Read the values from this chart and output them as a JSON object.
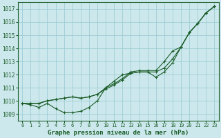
{
  "title": "Graphe pression niveau de la mer (hPa)",
  "bg_color": "#cce8ec",
  "grid_color": "#9ecdd4",
  "line_color": "#1a5c28",
  "marker_color": "#1a5c28",
  "x_values": [
    0,
    1,
    2,
    3,
    4,
    5,
    6,
    7,
    8,
    9,
    10,
    11,
    12,
    13,
    14,
    15,
    16,
    17,
    18,
    19,
    20,
    21,
    22,
    23
  ],
  "series1": [
    1009.8,
    1009.7,
    1009.5,
    1009.8,
    1009.4,
    1009.1,
    1009.1,
    1009.2,
    1009.5,
    1010.0,
    1011.0,
    1011.5,
    1012.0,
    1012.1,
    1012.2,
    1012.2,
    1011.8,
    1012.2,
    1012.9,
    1014.1,
    1015.2,
    1015.9,
    1016.7,
    1017.2
  ],
  "series2": [
    1009.8,
    1009.8,
    1009.8,
    1010.0,
    1010.1,
    1010.2,
    1010.3,
    1010.2,
    1010.3,
    1010.5,
    1010.9,
    1011.2,
    1011.6,
    1012.1,
    1012.2,
    1012.2,
    1012.2,
    1012.5,
    1013.2,
    1014.1,
    1015.2,
    1015.9,
    1016.7,
    1017.2
  ],
  "series3": [
    1009.8,
    1009.8,
    1009.8,
    1010.0,
    1010.1,
    1010.2,
    1010.3,
    1010.2,
    1010.3,
    1010.5,
    1011.0,
    1011.3,
    1011.7,
    1012.2,
    1012.3,
    1012.3,
    1012.3,
    1013.0,
    1013.8,
    1014.1,
    1015.2,
    1015.9,
    1016.7,
    1017.2
  ],
  "ylim": [
    1008.5,
    1017.5
  ],
  "xlim": [
    -0.5,
    23.5
  ],
  "yticks": [
    1009,
    1010,
    1011,
    1012,
    1013,
    1014,
    1015,
    1016,
    1017
  ],
  "xticks": [
    0,
    1,
    2,
    3,
    4,
    5,
    6,
    7,
    8,
    9,
    10,
    11,
    12,
    13,
    14,
    15,
    16,
    17,
    18,
    19,
    20,
    21,
    22,
    23
  ]
}
